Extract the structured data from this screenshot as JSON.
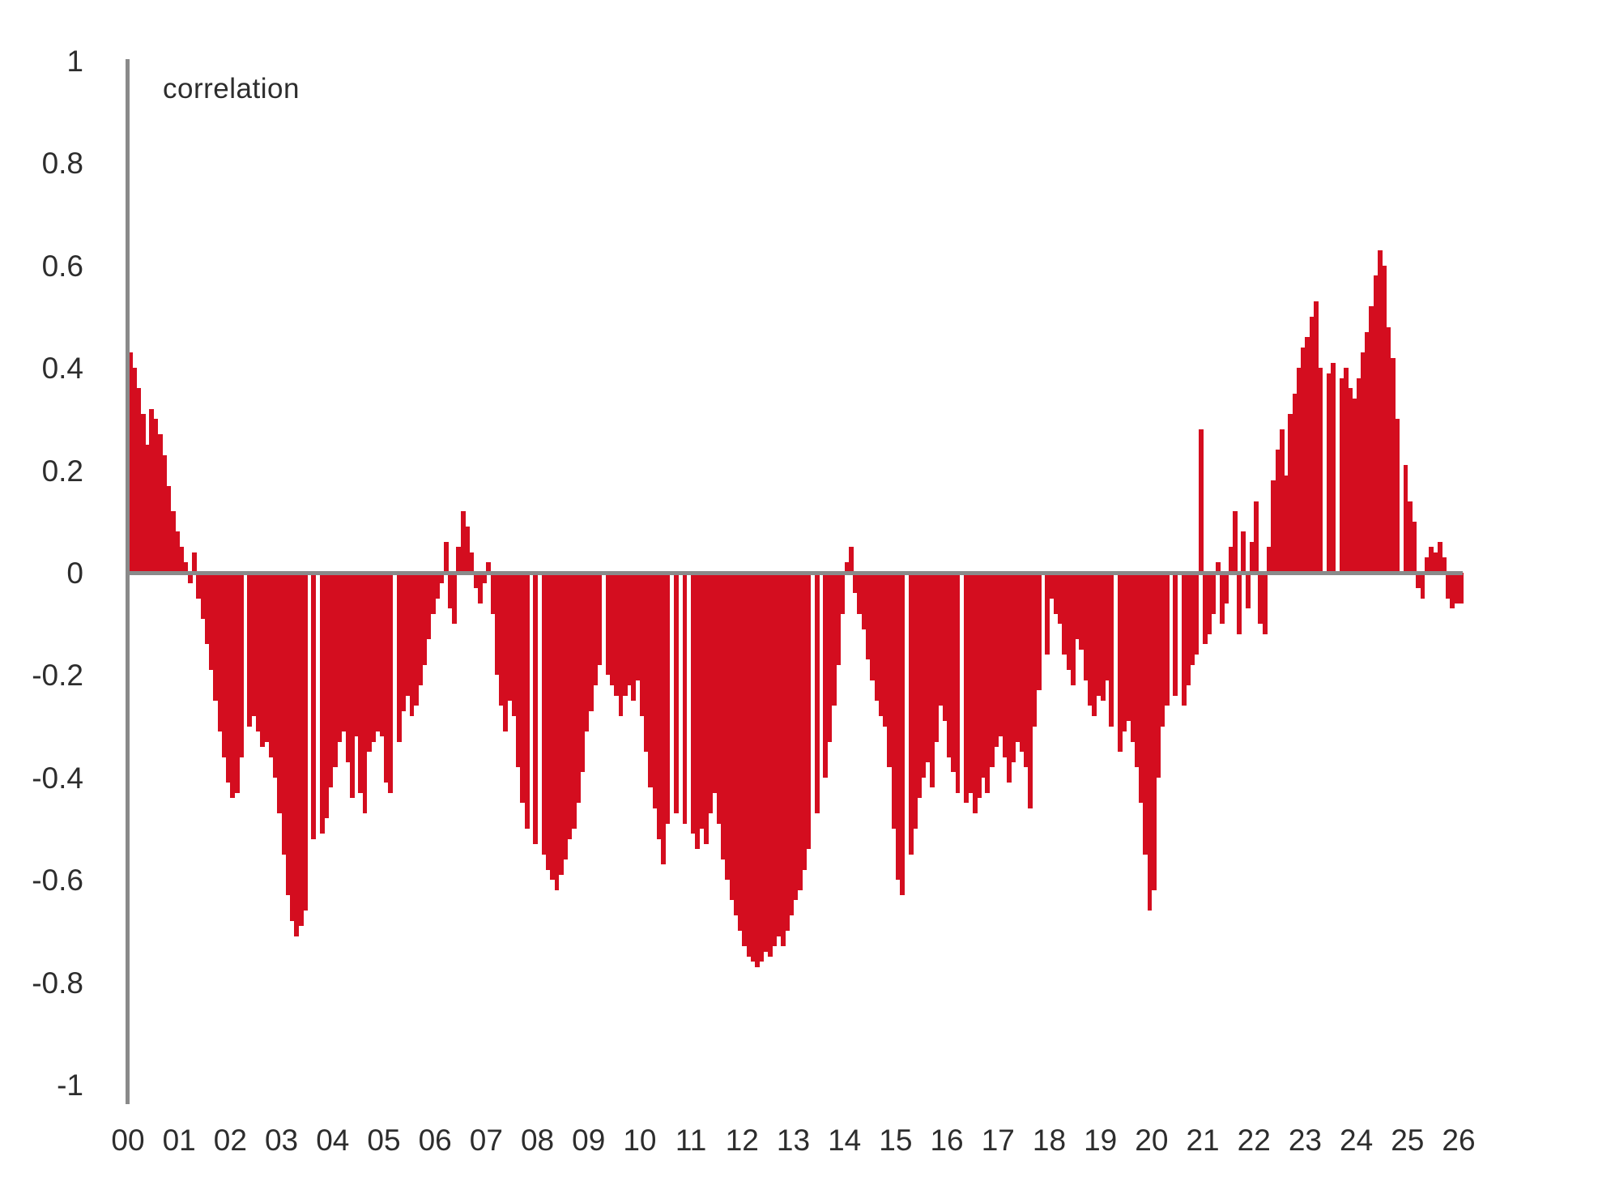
{
  "title_label": "correlation",
  "chart_data": {
    "type": "bar",
    "title": "correlation",
    "xlabel": "",
    "ylabel": "correlation",
    "x_description": "years 2000 through 2026, monthly resolution, labels show 2-digit year",
    "x_tick_labels": [
      "00",
      "01",
      "02",
      "03",
      "04",
      "05",
      "06",
      "07",
      "08",
      "09",
      "10",
      "11",
      "12",
      "13",
      "14",
      "15",
      "16",
      "17",
      "18",
      "19",
      "20",
      "21",
      "22",
      "23",
      "24",
      "25",
      "26"
    ],
    "y_tick_labels": [
      "1",
      "0.8",
      "0.6",
      "0.4",
      "0.2",
      "0",
      "-0.2",
      "-0.4",
      "-0.6",
      "-0.8",
      "-1"
    ],
    "y_tick_values": [
      1,
      0.8,
      0.6,
      0.4,
      0.2,
      0,
      -0.2,
      -0.4,
      -0.6,
      -0.8,
      -1
    ],
    "ylim": [
      -1,
      1
    ],
    "grid": false,
    "legend": false,
    "bar_color": "#d40d1f",
    "axis_color": "#8a8a8a",
    "text_color": "#2d2d2d",
    "points_per_year": 12,
    "values": [
      0.43,
      0.4,
      0.36,
      0.31,
      0.25,
      0.32,
      0.3,
      0.27,
      0.23,
      0.17,
      0.12,
      0.08,
      0.05,
      0.02,
      -0.02,
      0.04,
      -0.05,
      -0.09,
      -0.14,
      -0.19,
      -0.25,
      -0.31,
      -0.36,
      -0.41,
      -0.44,
      -0.43,
      -0.36,
      0,
      -0.3,
      -0.28,
      -0.31,
      -0.34,
      -0.33,
      -0.36,
      -0.4,
      -0.47,
      -0.55,
      -0.63,
      -0.68,
      -0.71,
      -0.69,
      -0.66,
      0,
      -0.52,
      0,
      -0.51,
      -0.48,
      -0.42,
      -0.38,
      -0.33,
      -0.31,
      -0.37,
      -0.44,
      -0.32,
      -0.43,
      -0.47,
      -0.35,
      -0.33,
      -0.31,
      -0.32,
      -0.41,
      -0.43,
      0,
      -0.33,
      -0.27,
      -0.24,
      -0.28,
      -0.26,
      -0.22,
      -0.18,
      -0.13,
      -0.08,
      -0.05,
      -0.02,
      0.06,
      -0.07,
      -0.1,
      0.05,
      0.12,
      0.09,
      0.04,
      -0.03,
      -0.06,
      -0.02,
      0.02,
      -0.08,
      -0.2,
      -0.26,
      -0.31,
      -0.25,
      -0.28,
      -0.38,
      -0.45,
      -0.5,
      0,
      -0.53,
      0,
      -0.55,
      -0.58,
      -0.6,
      -0.62,
      -0.59,
      -0.56,
      -0.52,
      -0.5,
      -0.45,
      -0.39,
      -0.31,
      -0.27,
      -0.22,
      -0.18,
      0,
      -0.2,
      -0.22,
      -0.24,
      -0.28,
      -0.24,
      -0.22,
      -0.25,
      -0.21,
      -0.28,
      -0.35,
      -0.42,
      -0.46,
      -0.52,
      -0.57,
      -0.49,
      0,
      -0.47,
      0,
      -0.49,
      0,
      -0.51,
      -0.54,
      -0.5,
      -0.53,
      -0.47,
      -0.43,
      -0.49,
      -0.56,
      -0.6,
      -0.64,
      -0.67,
      -0.7,
      -0.73,
      -0.75,
      -0.76,
      -0.77,
      -0.76,
      -0.74,
      -0.75,
      -0.73,
      -0.71,
      -0.73,
      -0.7,
      -0.67,
      -0.64,
      -0.62,
      -0.58,
      -0.54,
      0,
      -0.47,
      0,
      -0.4,
      -0.33,
      -0.26,
      -0.18,
      -0.08,
      0.02,
      0.05,
      -0.04,
      -0.08,
      -0.11,
      -0.17,
      -0.21,
      -0.25,
      -0.28,
      -0.3,
      -0.38,
      -0.5,
      -0.6,
      -0.63,
      0,
      -0.55,
      -0.5,
      -0.44,
      -0.4,
      -0.37,
      -0.42,
      -0.33,
      -0.26,
      -0.29,
      -0.36,
      -0.39,
      -0.43,
      0,
      -0.45,
      -0.43,
      -0.47,
      -0.44,
      -0.4,
      -0.43,
      -0.38,
      -0.34,
      -0.32,
      -0.36,
      -0.41,
      -0.37,
      -0.33,
      -0.35,
      -0.38,
      -0.46,
      -0.3,
      -0.23,
      0,
      -0.16,
      -0.05,
      -0.08,
      -0.1,
      -0.16,
      -0.19,
      -0.22,
      -0.13,
      -0.15,
      -0.21,
      -0.26,
      -0.28,
      -0.24,
      -0.25,
      -0.21,
      -0.3,
      0,
      -0.35,
      -0.31,
      -0.29,
      -0.33,
      -0.38,
      -0.45,
      -0.55,
      -0.66,
      -0.62,
      -0.4,
      -0.3,
      -0.26,
      0,
      -0.24,
      0,
      -0.26,
      -0.22,
      -0.18,
      -0.16,
      0.28,
      -0.14,
      -0.12,
      -0.08,
      0.02,
      -0.1,
      -0.06,
      0.05,
      0.12,
      -0.12,
      0.08,
      -0.07,
      0.06,
      0.14,
      -0.1,
      -0.12,
      0.05,
      0.18,
      0.24,
      0.28,
      0.19,
      0.31,
      0.35,
      0.4,
      0.44,
      0.46,
      0.5,
      0.53,
      0.4,
      0,
      0.39,
      0.41,
      0,
      0.38,
      0.4,
      0.36,
      0.34,
      0.38,
      0.43,
      0.47,
      0.52,
      0.58,
      0.63,
      0.6,
      0.48,
      0.42,
      0.3,
      0,
      0.21,
      0.14,
      0.1,
      -0.03,
      -0.05,
      0.03,
      0.05,
      0.04,
      0.06,
      0.03,
      -0.05,
      -0.07,
      -0.06,
      -0.06
    ]
  }
}
